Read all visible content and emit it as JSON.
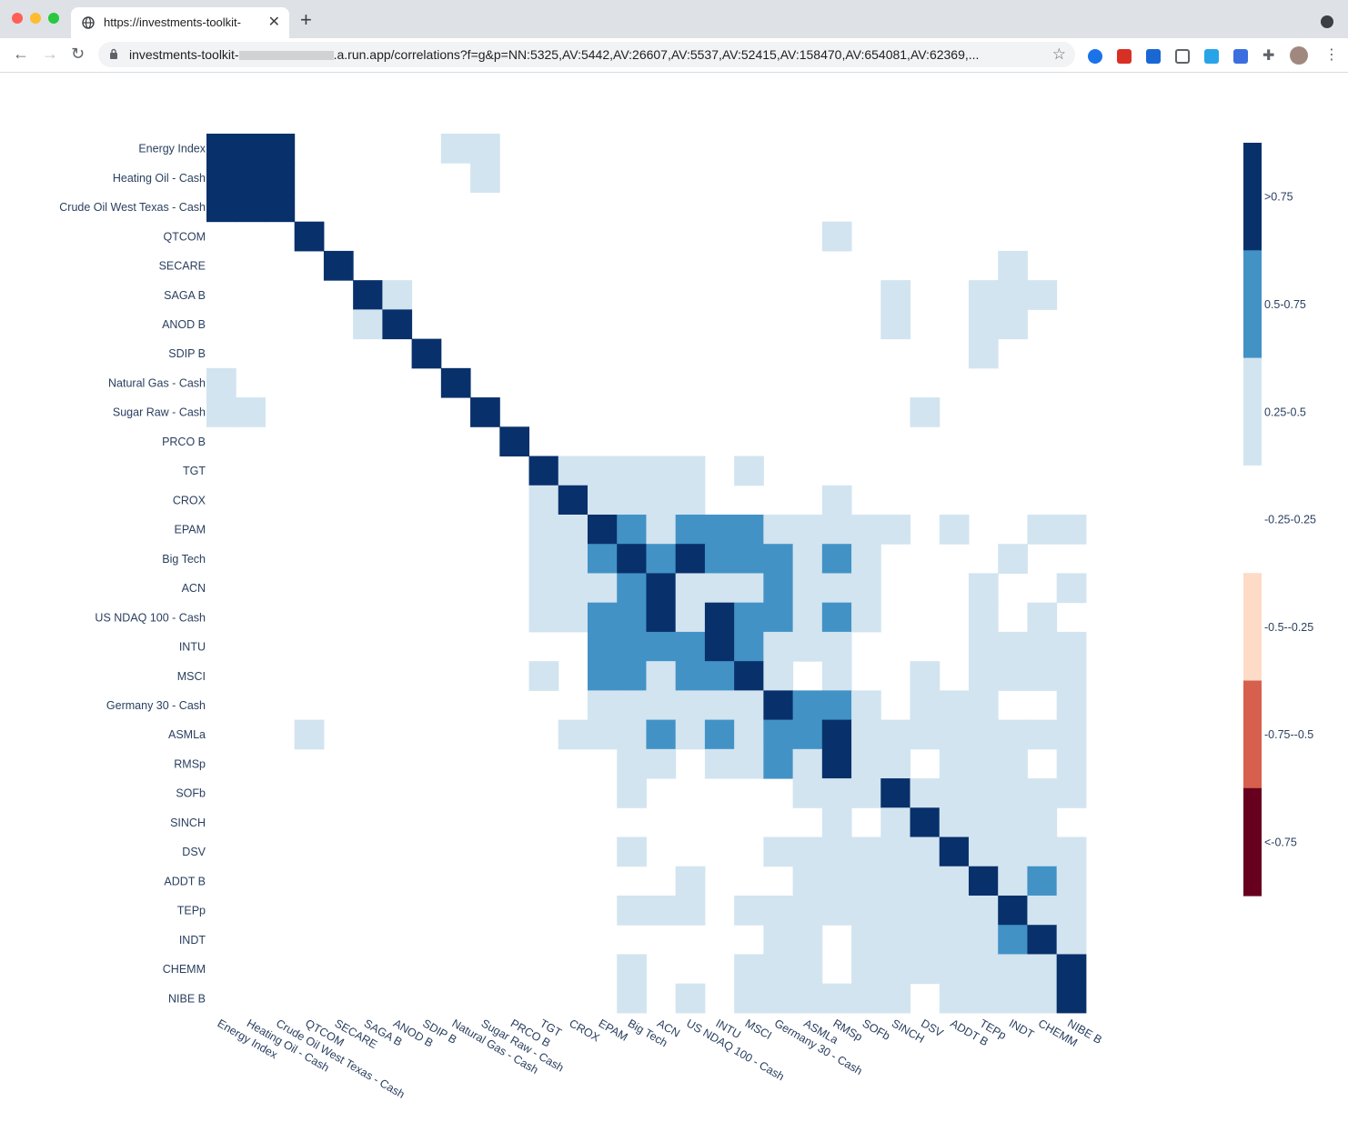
{
  "browser": {
    "tab_title": "https://investments-toolkit-",
    "url_host": "investments-toolkit-",
    "url_rest": ".a.run.app/correlations?f=g&p=NN:5325,AV:5442,AV:26607,AV:5537,AV:52415,AV:158470,AV:654081,AV:62369,...",
    "icons": [
      "close-icon",
      "plus-icon",
      "back-icon",
      "forward-icon",
      "reload-icon",
      "lock-icon",
      "star-icon",
      "puzzle-icon",
      "avatar"
    ]
  },
  "chart_data": {
    "type": "heatmap",
    "labels": [
      "Energy Index",
      "Heating Oil - Cash",
      "Crude Oil West Texas - Cash",
      "QTCOM",
      "SECARE",
      "SAGA B",
      "ANOD B",
      "SDIP B",
      "Natural Gas - Cash",
      "Sugar Raw - Cash",
      "PRCO B",
      "TGT",
      "CROX",
      "EPAM",
      "Big Tech",
      "ACN",
      "US NDAQ 100 - Cash",
      "INTU",
      "MSCI",
      "Germany 30 - Cash",
      "ASMLa",
      "RMSp",
      "SOFb",
      "SINCH",
      "DSV",
      "ADDT B",
      "TEPp",
      "INDT",
      "CHEMM",
      "NIBE B"
    ],
    "legend": [
      ">0.75",
      "0.5-0.75",
      "0.25-0.5",
      "-0.25-0.25",
      "-0.5--0.25",
      "-0.75--0.5",
      "<-0.75"
    ],
    "bucket_colors": [
      "#08306b",
      "#4292c6",
      "#d2e4f0",
      "#ffffff",
      "#fddbc7",
      "#d6604d",
      "#67001f"
    ],
    "bucket_note": "0=>0.75, 1=0.5-0.75, 2=0.25-0.5, 3=-0.25-0.25",
    "z": [
      "000333332233333333333333333333",
      "000333333233333333333333333333",
      "000333333333333333333333333333",
      "333033333333333333333233333333",
      "333303333333333333333333333233",
      "333330233333333333333332332223",
      "333332033333333333333332332233",
      "333333303333333333333333332333",
      "233333330333333333333333333333",
      "223333333033333333333333233333",
      "333333333303333333333333333333",
      "333333333330222223233333333333",
      "333333333332022223333233333333",
      "333333333332201211122222323322",
      "333333333332210101112123333233",
      "333333333332221022212223332332",
      "333333333332211020112123332323",
      "333333333333311110122233332222",
      "333333333332311211023233232222",
      "333333333333322222201123222332",
      "333233333333222121211022222222",
      "333333333333332232212022322232",
      "333333333333332333332220222222",
      "333333333333333333333232022223",
      "333333333333332333322222202222",
      "333333333333333323332222220212",
      "333333333333332223222222222022",
      "333333333333333333322322222102",
      "333333333333332333222322222220",
      "333333333333332323222222322220"
    ]
  }
}
